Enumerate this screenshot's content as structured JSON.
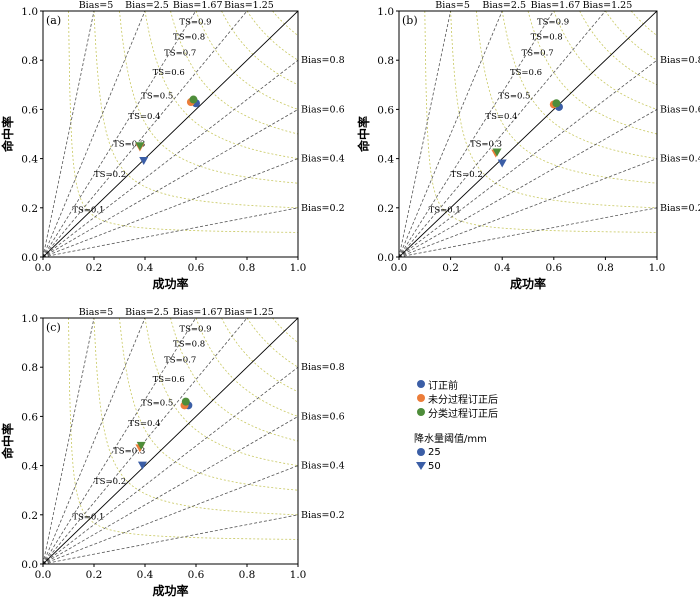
{
  "colors": {
    "before": "#3b5ea6",
    "unclassified": "#ec7d3a",
    "classified": "#4e8d3a",
    "ts_line": "#000000",
    "bias_line": "#555555",
    "ts_curve": "#c8c860"
  },
  "axis_labels": {
    "x": "成功率",
    "y": "命中率"
  },
  "ticks": [
    "0.0",
    "0.2",
    "0.4",
    "0.6",
    "0.8",
    "1.0"
  ],
  "bias_labels": {
    "top": [
      "Bias=5",
      "Bias=2.5",
      "Bias=1.67",
      "Bias=1.25"
    ],
    "right": [
      "Bias=0.8",
      "Bias=0.6",
      "Bias=0.4",
      "Bias=0.2"
    ]
  },
  "ts_labels": [
    "TS=0.1",
    "TS=0.2",
    "TS=0.3",
    "TS=0.4",
    "TS=0.5",
    "TS=0.6",
    "TS=0.7",
    "TS=0.8",
    "TS=0.9"
  ],
  "legend": {
    "items": [
      "订正前",
      "未分过程订正后",
      "分类过程订正后"
    ],
    "threshold_title": "降水量阈值/mm",
    "thresholds": [
      "25",
      "50"
    ]
  },
  "chart_data": [
    {
      "type": "scatter",
      "panel_label": "(a)",
      "xlabel": "成功率",
      "ylabel": "命中率",
      "xlim": [
        0,
        1
      ],
      "ylim": [
        0,
        1
      ],
      "bias_lines": [
        5,
        2.5,
        1.67,
        1.25,
        0.8,
        0.6,
        0.4,
        0.2
      ],
      "ts_curves": [
        0.1,
        0.2,
        0.3,
        0.4,
        0.5,
        0.6,
        0.7,
        0.8,
        0.9
      ],
      "series": [
        {
          "name": "订正前",
          "threshold": "25",
          "marker": "circle",
          "x": 0.6,
          "y": 0.625
        },
        {
          "name": "未分过程订正后",
          "threshold": "25",
          "marker": "circle",
          "x": 0.58,
          "y": 0.63
        },
        {
          "name": "分类过程订正后",
          "threshold": "25",
          "marker": "circle",
          "x": 0.59,
          "y": 0.64
        },
        {
          "name": "订正前",
          "threshold": "50",
          "marker": "triangle",
          "x": 0.395,
          "y": 0.39
        },
        {
          "name": "未分过程订正后",
          "threshold": "50",
          "marker": "triangle",
          "x": 0.38,
          "y": 0.445
        },
        {
          "name": "分类过程订正后",
          "threshold": "50",
          "marker": "triangle",
          "x": 0.38,
          "y": 0.45
        }
      ]
    },
    {
      "type": "scatter",
      "panel_label": "(b)",
      "xlabel": "成功率",
      "ylabel": "命中率",
      "xlim": [
        0,
        1
      ],
      "ylim": [
        0,
        1
      ],
      "bias_lines": [
        5,
        2.5,
        1.67,
        1.25,
        0.8,
        0.6,
        0.4,
        0.2
      ],
      "ts_curves": [
        0.1,
        0.2,
        0.3,
        0.4,
        0.5,
        0.6,
        0.7,
        0.8,
        0.9
      ],
      "series": [
        {
          "name": "订正前",
          "threshold": "25",
          "marker": "circle",
          "x": 0.62,
          "y": 0.61
        },
        {
          "name": "未分过程订正后",
          "threshold": "25",
          "marker": "circle",
          "x": 0.6,
          "y": 0.62
        },
        {
          "name": "分类过程订正后",
          "threshold": "25",
          "marker": "circle",
          "x": 0.61,
          "y": 0.625
        },
        {
          "name": "订正前",
          "threshold": "50",
          "marker": "triangle",
          "x": 0.4,
          "y": 0.38
        },
        {
          "name": "未分过程订正后",
          "threshold": "50",
          "marker": "triangle",
          "x": 0.375,
          "y": 0.42
        },
        {
          "name": "分类过程订正后",
          "threshold": "50",
          "marker": "triangle",
          "x": 0.38,
          "y": 0.425
        }
      ]
    },
    {
      "type": "scatter",
      "panel_label": "(c)",
      "xlabel": "成功率",
      "ylabel": "命中率",
      "xlim": [
        0,
        1
      ],
      "ylim": [
        0,
        1
      ],
      "bias_lines": [
        5,
        2.5,
        1.67,
        1.25,
        0.8,
        0.6,
        0.4,
        0.2
      ],
      "ts_curves": [
        0.1,
        0.2,
        0.3,
        0.4,
        0.5,
        0.6,
        0.7,
        0.8,
        0.9
      ],
      "series": [
        {
          "name": "订正前",
          "threshold": "25",
          "marker": "circle",
          "x": 0.57,
          "y": 0.645
        },
        {
          "name": "未分过程订正后",
          "threshold": "25",
          "marker": "circle",
          "x": 0.555,
          "y": 0.645
        },
        {
          "name": "分类过程订正后",
          "threshold": "25",
          "marker": "circle",
          "x": 0.56,
          "y": 0.66
        },
        {
          "name": "订正前",
          "threshold": "50",
          "marker": "triangle",
          "x": 0.39,
          "y": 0.4
        },
        {
          "name": "未分过程订正后",
          "threshold": "50",
          "marker": "triangle",
          "x": 0.38,
          "y": 0.47
        },
        {
          "name": "分类过程订正后",
          "threshold": "50",
          "marker": "triangle",
          "x": 0.385,
          "y": 0.48
        }
      ]
    }
  ]
}
